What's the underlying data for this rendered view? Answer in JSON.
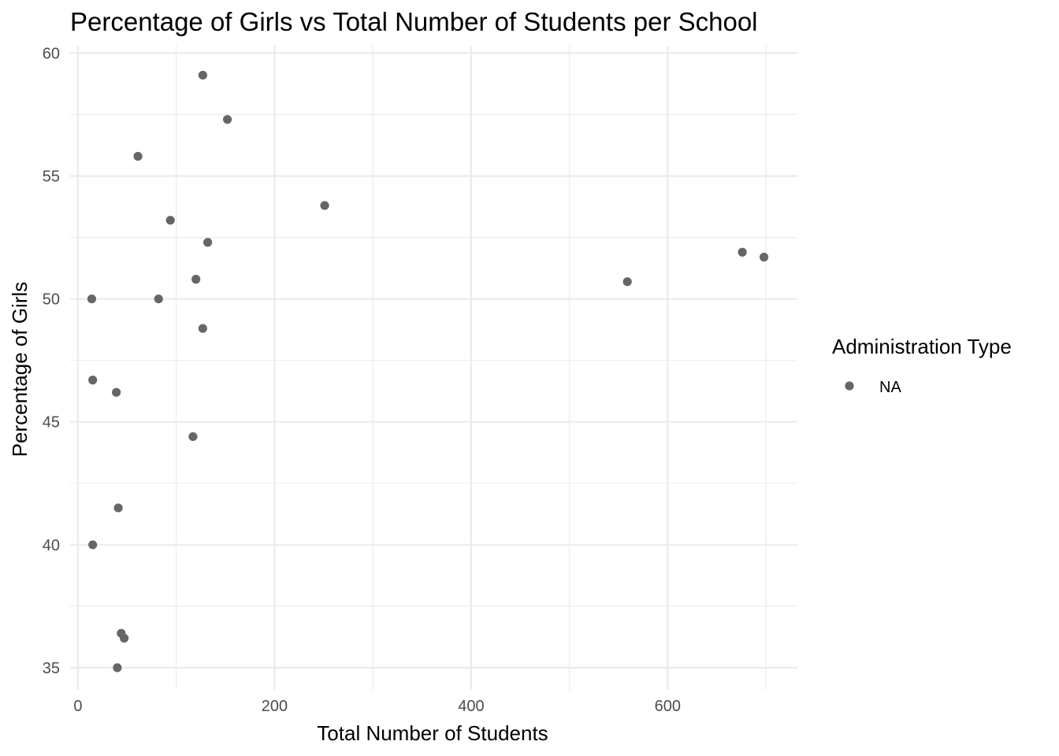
{
  "chart_data": {
    "type": "scatter",
    "title": "Percentage of Girls vs Total Number of Students per School",
    "xlabel": "Total Number of Students",
    "ylabel": "Percentage of Girls",
    "xlim": [
      -8,
      732
    ],
    "ylim": [
      34.1,
      60.3
    ],
    "x_ticks": [
      0,
      200,
      400,
      600
    ],
    "x_tick_labels": [
      "0",
      "200",
      "400",
      "600"
    ],
    "x_minor_ticks": [
      100,
      300,
      500,
      700
    ],
    "y_ticks": [
      35,
      40,
      45,
      50,
      55,
      60
    ],
    "y_tick_labels": [
      "35",
      "40",
      "45",
      "50",
      "55",
      "60"
    ],
    "y_minor_ticks": [
      37.5,
      42.5,
      47.5,
      52.5,
      57.5
    ],
    "grid": true,
    "legend": {
      "title": "Administration Type",
      "position": "right",
      "entries": [
        {
          "label": "NA",
          "color": "#666666"
        }
      ]
    },
    "point_color": "#666666",
    "series": [
      {
        "name": "NA",
        "points": [
          {
            "x": 127,
            "y": 59.1
          },
          {
            "x": 152,
            "y": 57.3
          },
          {
            "x": 61,
            "y": 55.8
          },
          {
            "x": 251,
            "y": 53.8
          },
          {
            "x": 94,
            "y": 53.2
          },
          {
            "x": 132,
            "y": 52.3
          },
          {
            "x": 676,
            "y": 51.9
          },
          {
            "x": 698,
            "y": 51.7
          },
          {
            "x": 120,
            "y": 50.8
          },
          {
            "x": 559,
            "y": 50.7
          },
          {
            "x": 14,
            "y": 50.0
          },
          {
            "x": 82,
            "y": 50.0
          },
          {
            "x": 127,
            "y": 48.8
          },
          {
            "x": 15,
            "y": 46.7
          },
          {
            "x": 39,
            "y": 46.2
          },
          {
            "x": 117,
            "y": 44.4
          },
          {
            "x": 41,
            "y": 41.5
          },
          {
            "x": 15,
            "y": 40.0
          },
          {
            "x": 44,
            "y": 36.4
          },
          {
            "x": 47,
            "y": 36.2
          },
          {
            "x": 40,
            "y": 35.0
          }
        ]
      }
    ]
  }
}
